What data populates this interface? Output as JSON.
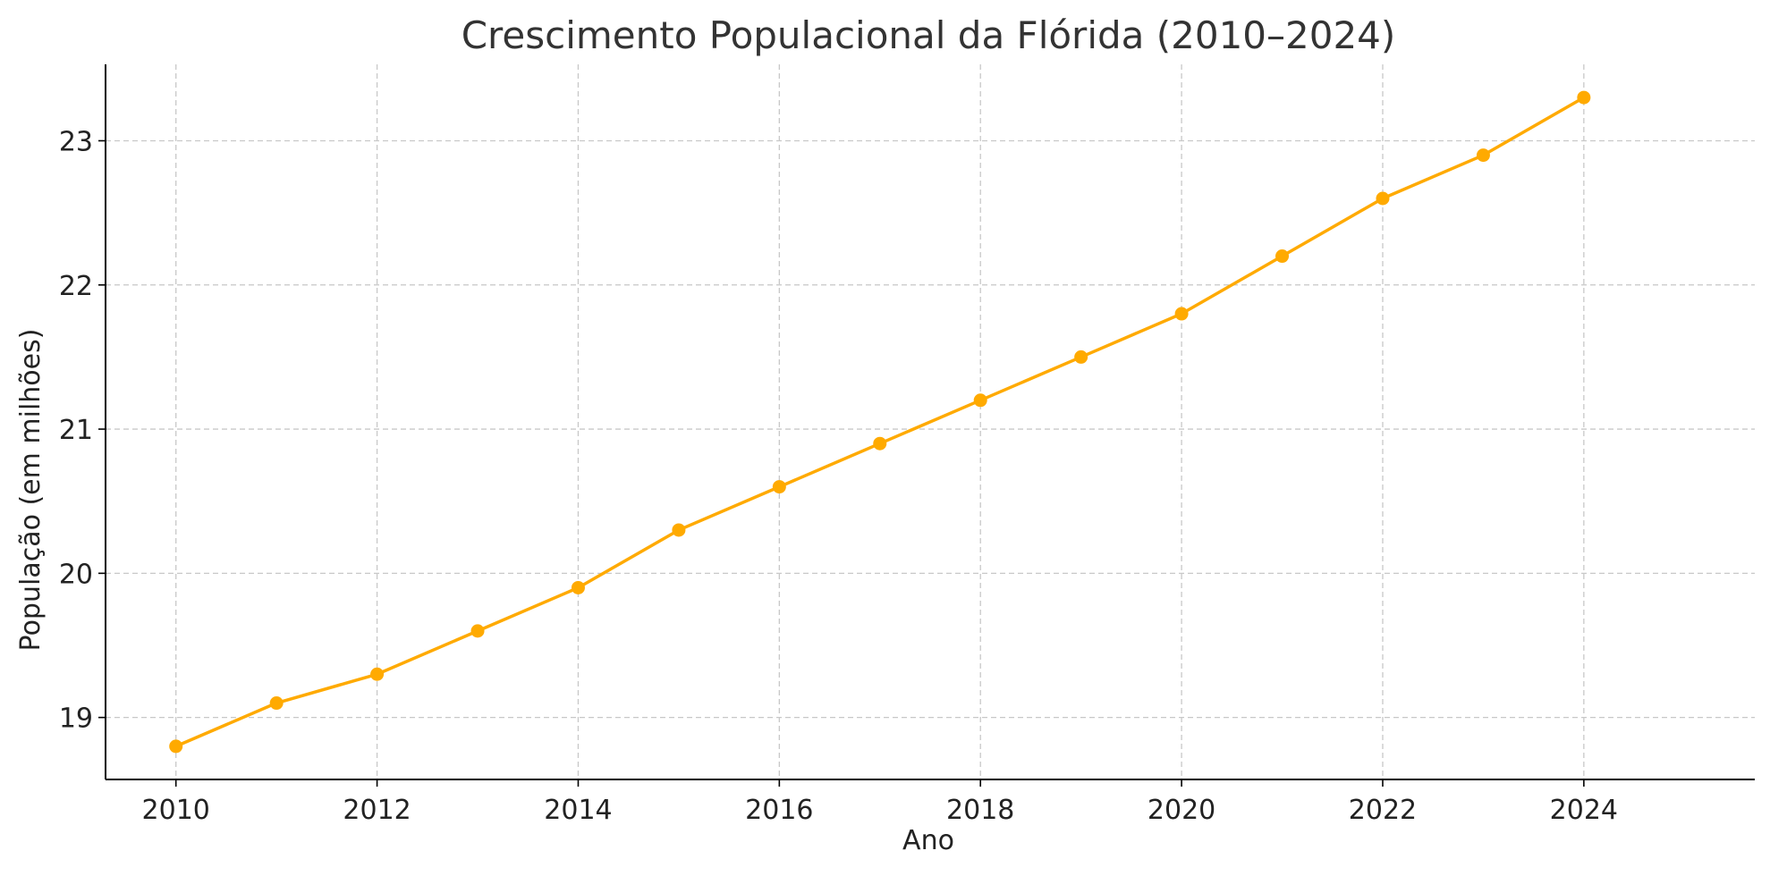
{
  "chart_data": {
    "type": "line",
    "title": "Crescimento Populacional da Flórida (2010–2024)",
    "xlabel": "Ano",
    "ylabel": "População (em milhões)",
    "x": [
      2010,
      2011,
      2012,
      2013,
      2014,
      2015,
      2016,
      2017,
      2018,
      2019,
      2020,
      2021,
      2022,
      2023,
      2024
    ],
    "series": [
      {
        "color": "#FFAA00",
        "values": [
          18.8,
          19.1,
          19.3,
          19.6,
          19.9,
          20.3,
          20.6,
          20.9,
          21.2,
          21.5,
          21.8,
          22.2,
          22.6,
          22.9,
          23.3
        ]
      }
    ],
    "xlim": [
      2009.3,
      2025.7
    ],
    "ylim": [
      18.57,
      23.53
    ],
    "x_ticks": [
      "2010",
      "2012",
      "2014",
      "2016",
      "2018",
      "2020",
      "2022",
      "2024"
    ],
    "y_ticks": [
      "19",
      "20",
      "21",
      "22",
      "23"
    ],
    "grid": true,
    "legend": "none"
  }
}
